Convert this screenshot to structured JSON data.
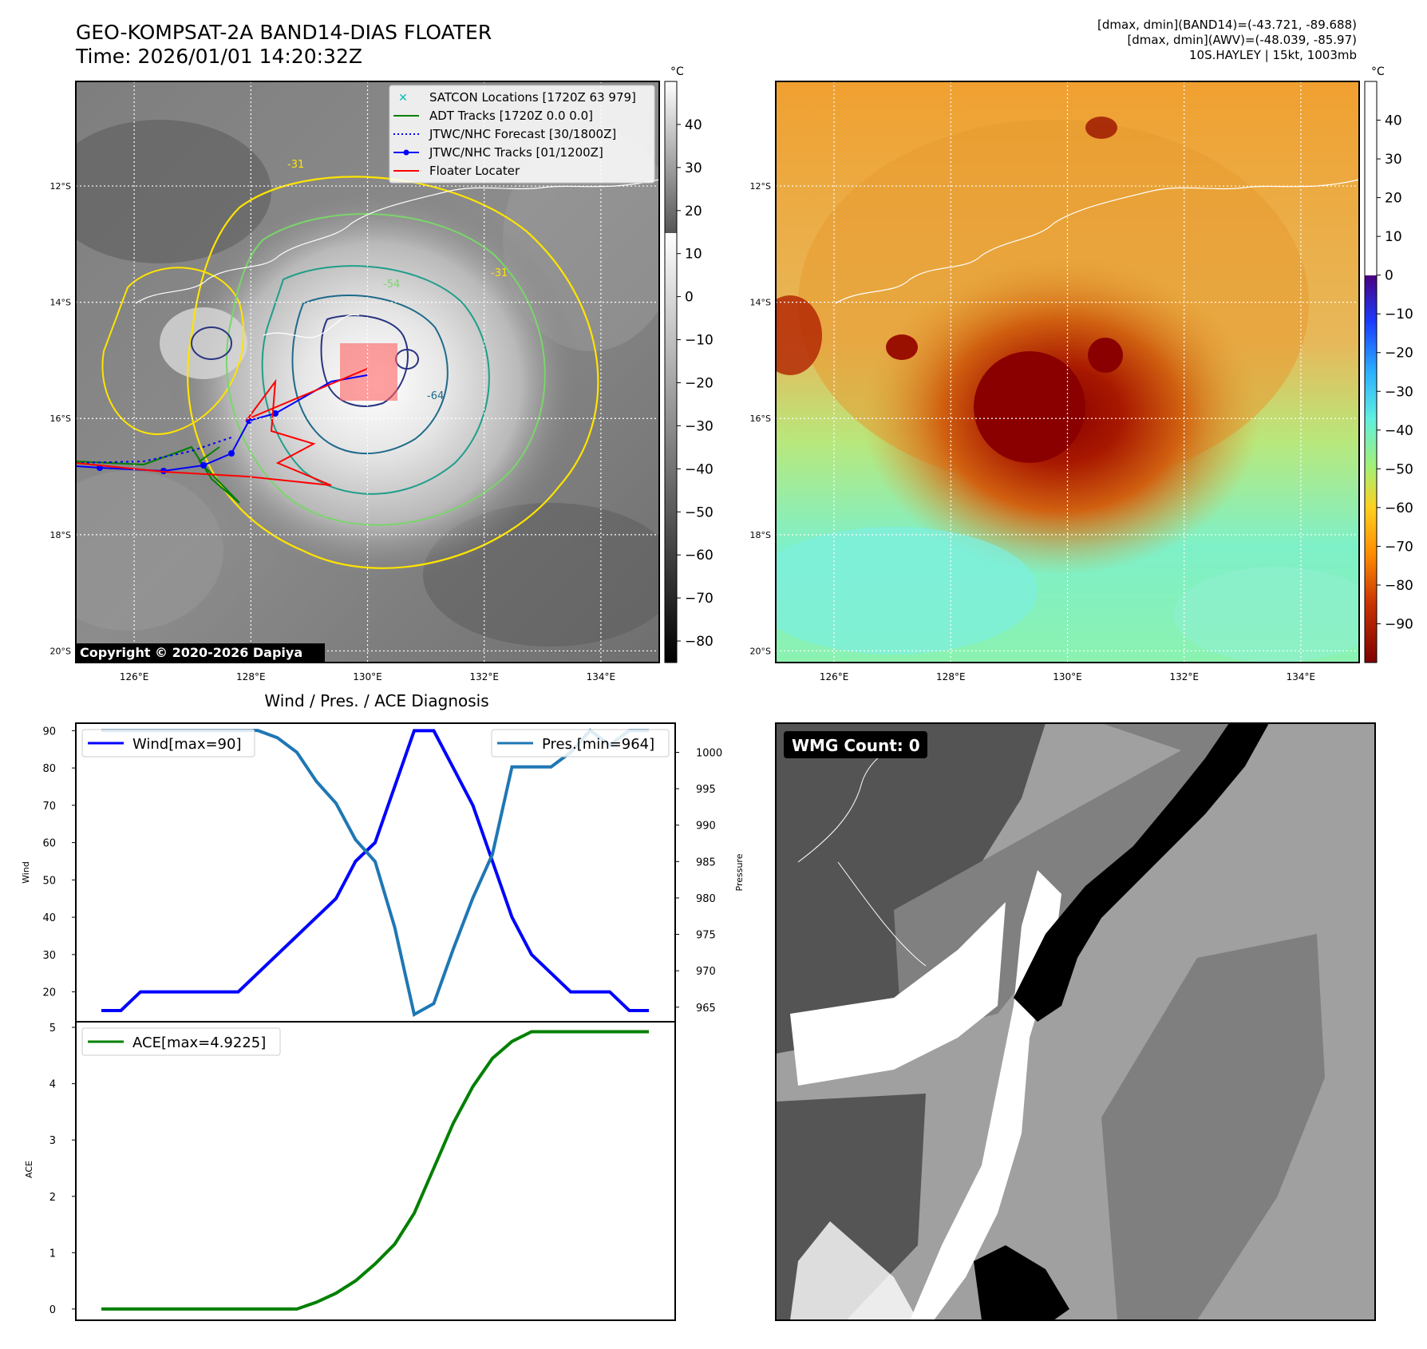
{
  "header": {
    "title_line1": "GEO-KOMPSAT-2A BAND14-DIAS FLOATER",
    "title_line2": "Time: 2026/01/01 14:20:32Z",
    "info_line1": "[dmax, dmin](BAND14)=(-43.721, -89.688)",
    "info_line2": "[dmax, dmin](AWV)=(-48.039, -85.97)",
    "info_line3": "10S.HAYLEY | 15kt, 1003mb"
  },
  "map_axes": {
    "lat_labels": [
      "12°S",
      "14°S",
      "16°S",
      "18°S",
      "20°S"
    ],
    "lon_labels": [
      "126°E",
      "128°E",
      "130°E",
      "132°E",
      "134°E"
    ],
    "lat_values": [
      -12,
      -14,
      -16,
      -18,
      -20
    ],
    "lon_values": [
      126,
      128,
      130,
      132,
      134
    ],
    "lon_range": [
      125,
      135
    ],
    "lat_range": [
      -20.2,
      -10.2
    ]
  },
  "left_map": {
    "colorbar_unit": "°C",
    "colorbar_ticks": [
      "40",
      "30",
      "20",
      "10",
      "0",
      "−10",
      "−20",
      "−30",
      "−40",
      "−50",
      "−60",
      "−70",
      "−80"
    ],
    "colorbar_values": [
      40,
      30,
      20,
      10,
      0,
      -10,
      -20,
      -30,
      -40,
      -50,
      -60,
      -70,
      -80
    ],
    "colorbar_range": [
      -85,
      50
    ],
    "copyright": "Copyright © 2020-2026 Dapiya",
    "contour_labels": [
      "-31",
      "-54",
      "-64",
      "-31"
    ],
    "legend": [
      {
        "label": "SATCON Locations [1720Z 63 979]",
        "color": "#00bfbf",
        "marker": "x"
      },
      {
        "label": "ADT Tracks [1720Z 0.0 0.0]",
        "color": "#008000",
        "marker": "line"
      },
      {
        "label": "JTWC/NHC Forecast [30/1800Z]",
        "color": "#0000ff",
        "marker": "dotted"
      },
      {
        "label": "JTWC/NHC Tracks [01/1200Z]",
        "color": "#0000ff",
        "marker": "dot-line"
      },
      {
        "label": "Floater Locater",
        "color": "#ff0000",
        "marker": "line"
      }
    ]
  },
  "right_map": {
    "colorbar_unit": "°C",
    "colorbar_ticks": [
      "40",
      "30",
      "20",
      "10",
      "0",
      "−10",
      "−20",
      "−30",
      "−40",
      "−50",
      "−60",
      "−70",
      "−80",
      "−90"
    ],
    "colorbar_values": [
      40,
      30,
      20,
      10,
      0,
      -10,
      -20,
      -30,
      -40,
      -50,
      -60,
      -70,
      -80,
      -90
    ],
    "colorbar_range": [
      -100,
      50
    ]
  },
  "wmg_panel": {
    "label": "WMG Count: 0"
  },
  "chart_data": [
    {
      "type": "line",
      "title": "Wind / Pres. / ACE Diagnosis",
      "ylabel": "Wind",
      "y2label": "Pressure",
      "ylim": [
        12,
        92
      ],
      "y2lim": [
        963,
        1004
      ],
      "yticks": [
        20,
        30,
        40,
        50,
        60,
        70,
        80,
        90
      ],
      "y2ticks": [
        965,
        970,
        975,
        980,
        985,
        990,
        995,
        1000
      ],
      "x": [
        0,
        1,
        2,
        3,
        4,
        5,
        6,
        7,
        8,
        9,
        10,
        11,
        12,
        13,
        14,
        15,
        16,
        17,
        18,
        19,
        20,
        21,
        22,
        23,
        24,
        25,
        26,
        27,
        28
      ],
      "series": [
        {
          "name": "Wind[max=90]",
          "color": "#0000ff",
          "axis": "left",
          "values": [
            15,
            15,
            20,
            20,
            20,
            20,
            20,
            20,
            25,
            30,
            35,
            40,
            45,
            55,
            60,
            75,
            90,
            90,
            80,
            70,
            55,
            40,
            30,
            25,
            20,
            20,
            20,
            15,
            15
          ]
        },
        {
          "name": "Pres.[min=964]",
          "color": "#1f77b4",
          "axis": "right",
          "values": [
            1003,
            1003,
            1003,
            1003,
            1003,
            1003,
            1003,
            1003,
            1003,
            1002,
            1000,
            996,
            993,
            988,
            985,
            976,
            964,
            965.5,
            973,
            980,
            986,
            998,
            998,
            998,
            1000,
            1003,
            1001,
            1003,
            1003
          ]
        }
      ],
      "legend": [
        "top-left",
        "top-right"
      ]
    },
    {
      "type": "line",
      "ylabel": "ACE",
      "ylim": [
        -0.2,
        5.1
      ],
      "yticks": [
        0,
        1,
        2,
        3,
        4,
        5
      ],
      "x": [
        0,
        1,
        2,
        3,
        4,
        5,
        6,
        7,
        8,
        9,
        10,
        11,
        12,
        13,
        14,
        15,
        16,
        17,
        18,
        19,
        20,
        21,
        22,
        23,
        24,
        25,
        26,
        27,
        28
      ],
      "series": [
        {
          "name": "ACE[max=4.9225]",
          "color": "#008000",
          "values": [
            0,
            0,
            0,
            0,
            0,
            0,
            0,
            0,
            0,
            0,
            0,
            0.12,
            0.28,
            0.5,
            0.8,
            1.15,
            1.7,
            2.5,
            3.3,
            3.95,
            4.45,
            4.75,
            4.9225,
            4.9225,
            4.9225,
            4.9225,
            4.9225,
            4.9225,
            4.9225
          ]
        }
      ],
      "legend": "top-left"
    }
  ]
}
